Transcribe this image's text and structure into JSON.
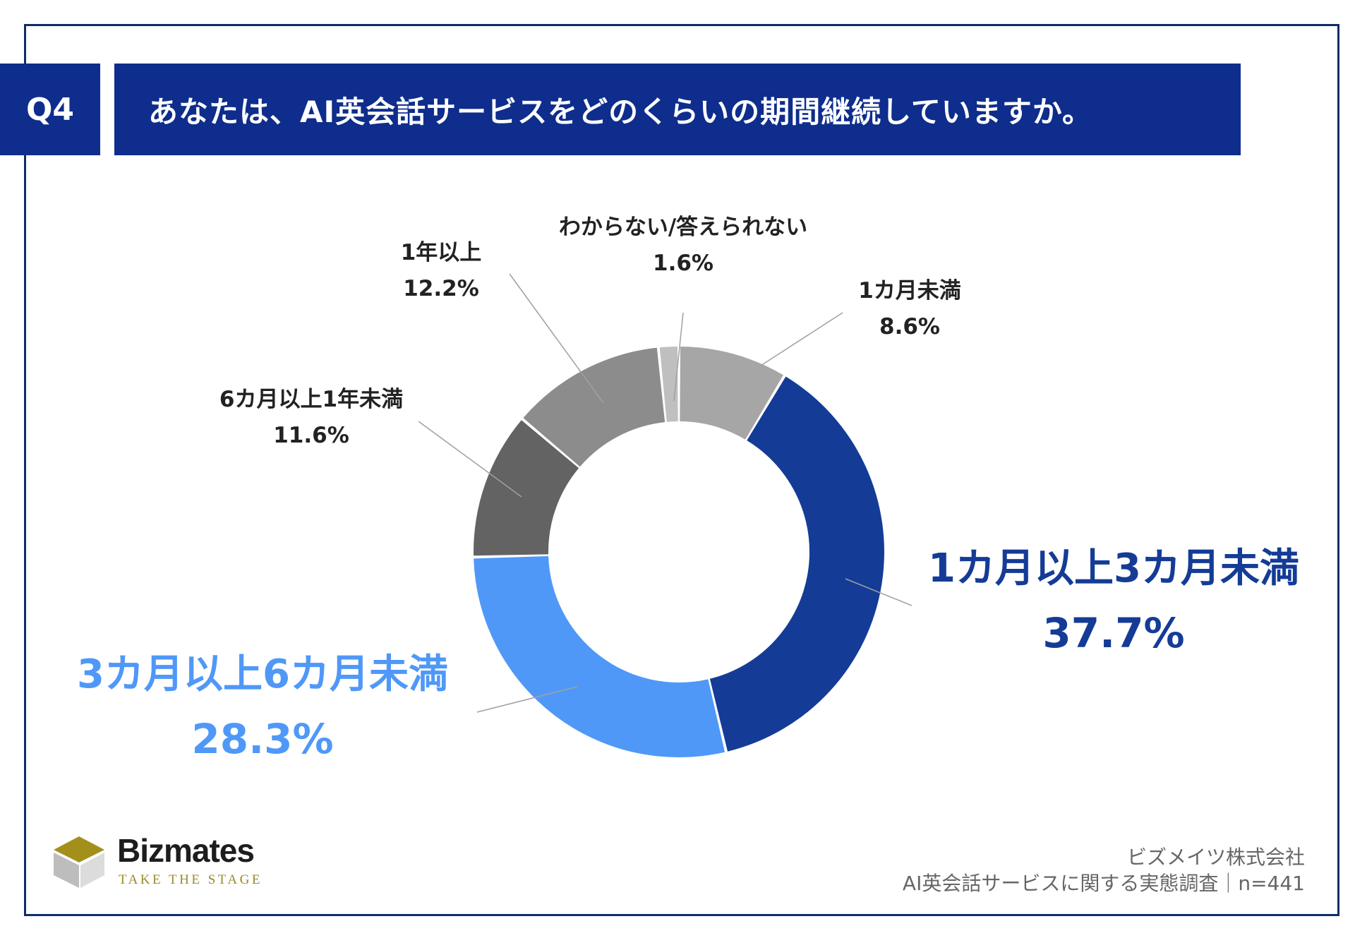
{
  "header": {
    "question_label": "Q4",
    "question_text": "あなたは、AI英会話サービスをどのくらいの期間継続していますか。"
  },
  "chart_data": {
    "type": "pie",
    "categories": [
      "1カ月未満",
      "1カ月以上3カ月未満",
      "3カ月以上6カ月未満",
      "6カ月以上1年未満",
      "1年以上",
      "わからない/答えられない"
    ],
    "values": [
      8.6,
      37.7,
      28.3,
      11.6,
      12.2,
      1.6
    ],
    "value_labels": [
      "8.6%",
      "37.7%",
      "28.3%",
      "11.6%",
      "12.2%",
      "1.6%"
    ],
    "colors": [
      "#a6a6a6",
      "#143c96",
      "#4f98f8",
      "#636363",
      "#8c8c8c",
      "#bfbfbf"
    ],
    "label_colors": [
      "#222222",
      "#143c96",
      "#4f98f8",
      "#222222",
      "#222222",
      "#222222"
    ],
    "style": "donut",
    "start": "12 o'clock",
    "direction": "clockwise"
  },
  "footer": {
    "brand": "Bizmates",
    "tagline": "TAKE THE STAGE",
    "company": "ビズメイツ株式会社",
    "survey": "AI英会話サービスに関する実態調査｜n=441"
  }
}
